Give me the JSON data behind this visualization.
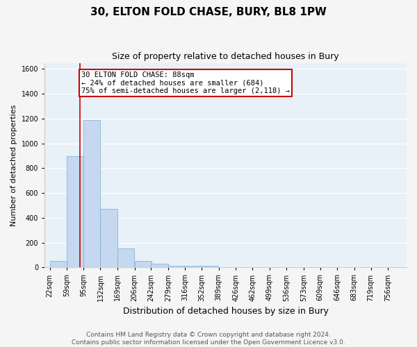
{
  "title": "30, ELTON FOLD CHASE, BURY, BL8 1PW",
  "subtitle": "Size of property relative to detached houses in Bury",
  "xlabel": "Distribution of detached houses by size in Bury",
  "ylabel": "Number of detached properties",
  "bins": [
    22,
    59,
    95,
    132,
    169,
    206,
    242,
    279,
    316,
    352,
    389,
    426,
    462,
    499,
    536,
    573,
    609,
    646,
    683,
    719,
    756
  ],
  "counts": [
    50,
    900,
    1190,
    470,
    150,
    50,
    30,
    15,
    15,
    15,
    0,
    0,
    0,
    0,
    0,
    0,
    0,
    0,
    0,
    0
  ],
  "bar_color": "#c5d8ef",
  "bar_edge_color": "#7aadd4",
  "background_color": "#e8f0f8",
  "grid_color": "#ffffff",
  "vline_x": 88,
  "vline_color": "#cc0000",
  "annotation_line1": "30 ELTON FOLD CHASE: 88sqm",
  "annotation_line2": "← 24% of detached houses are smaller (684)",
  "annotation_line3": "75% of semi-detached houses are larger (2,118) →",
  "annotation_box_color": "#cc0000",
  "ylim": [
    0,
    1650
  ],
  "yticks": [
    0,
    200,
    400,
    600,
    800,
    1000,
    1200,
    1400,
    1600
  ],
  "footer_line1": "Contains HM Land Registry data © Crown copyright and database right 2024.",
  "footer_line2": "Contains public sector information licensed under the Open Government Licence v3.0.",
  "title_fontsize": 11,
  "subtitle_fontsize": 9,
  "xlabel_fontsize": 9,
  "ylabel_fontsize": 8,
  "tick_fontsize": 7,
  "annotation_fontsize": 7.5,
  "footer_fontsize": 6.5
}
